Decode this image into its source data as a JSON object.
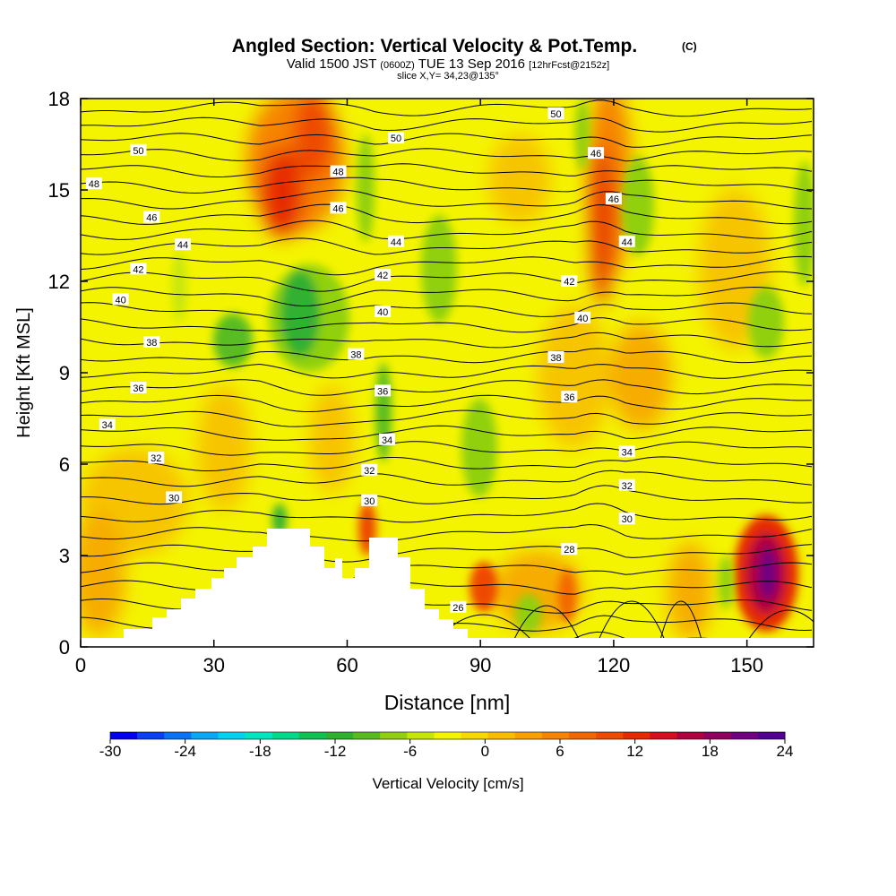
{
  "title": {
    "main": "Angled Section: Vertical Velocity & Pot.Temp.",
    "units": "(C)",
    "valid_a": "Valid 1500 JST",
    "valid_z": "(0600Z)",
    "valid_b": "TUE 13 Sep 2016",
    "fcst": "[12hrFcst@2152z]",
    "slice": "slice X,Y= 34,23@135°"
  },
  "colors": {
    "background_base": "#f4f400",
    "terrain": "#ffffff",
    "contour": "#000000",
    "colorbar": [
      "#0000ee",
      "#0a3ff2",
      "#0a73f5",
      "#08a8f5",
      "#00d2f0",
      "#00e6c0",
      "#00d88a",
      "#10c050",
      "#30b030",
      "#58bc20",
      "#90d010",
      "#c6e60a",
      "#f4f400",
      "#f7d800",
      "#f8bc00",
      "#f7a000",
      "#f68400",
      "#f26800",
      "#ee4a00",
      "#e62a00",
      "#d41020",
      "#b00040",
      "#900060",
      "#700080",
      "#520090"
    ]
  },
  "chart_data": {
    "type": "heatmap",
    "description_variable": "vertical velocity shading with potential temperature contours",
    "xlabel": "Distance [nm]",
    "ylabel": "Height [Kft MSL]",
    "xlim": [
      0,
      165
    ],
    "ylim": [
      0,
      18
    ],
    "xticks": [
      0,
      30,
      60,
      90,
      120,
      150
    ],
    "yticks": [
      0,
      3,
      6,
      9,
      12,
      15,
      18
    ],
    "colorbar": {
      "label": "Vertical Velocity [cm/s]",
      "ticks": [
        -30,
        -24,
        -18,
        -12,
        -6,
        0,
        6,
        12,
        18,
        24
      ],
      "range": [
        -30,
        24
      ]
    },
    "contour_labels": [
      {
        "x": 13,
        "y": 16.3,
        "text": "50"
      },
      {
        "x": 71,
        "y": 16.7,
        "text": "50"
      },
      {
        "x": 107,
        "y": 17.5,
        "text": "50"
      },
      {
        "x": 3,
        "y": 15.2,
        "text": "48"
      },
      {
        "x": 58,
        "y": 15.6,
        "text": "48"
      },
      {
        "x": 116,
        "y": 16.2,
        "text": "46"
      },
      {
        "x": 16,
        "y": 14.1,
        "text": "46"
      },
      {
        "x": 58,
        "y": 14.4,
        "text": "46"
      },
      {
        "x": 120,
        "y": 14.7,
        "text": "46"
      },
      {
        "x": 23,
        "y": 13.2,
        "text": "44"
      },
      {
        "x": 71,
        "y": 13.3,
        "text": "44"
      },
      {
        "x": 123,
        "y": 13.3,
        "text": "44"
      },
      {
        "x": 13,
        "y": 12.4,
        "text": "42"
      },
      {
        "x": 68,
        "y": 12.2,
        "text": "42"
      },
      {
        "x": 110,
        "y": 12.0,
        "text": "42"
      },
      {
        "x": 9,
        "y": 11.4,
        "text": "40"
      },
      {
        "x": 68,
        "y": 11.0,
        "text": "40"
      },
      {
        "x": 113,
        "y": 10.8,
        "text": "40"
      },
      {
        "x": 16,
        "y": 10.0,
        "text": "38"
      },
      {
        "x": 62,
        "y": 9.6,
        "text": "38"
      },
      {
        "x": 107,
        "y": 9.5,
        "text": "38"
      },
      {
        "x": 13,
        "y": 8.5,
        "text": "36"
      },
      {
        "x": 68,
        "y": 8.4,
        "text": "36"
      },
      {
        "x": 110,
        "y": 8.2,
        "text": "36"
      },
      {
        "x": 6,
        "y": 7.3,
        "text": "34"
      },
      {
        "x": 69,
        "y": 6.8,
        "text": "34"
      },
      {
        "x": 123,
        "y": 6.4,
        "text": "34"
      },
      {
        "x": 17,
        "y": 6.2,
        "text": "32"
      },
      {
        "x": 65,
        "y": 5.8,
        "text": "32"
      },
      {
        "x": 123,
        "y": 5.3,
        "text": "32"
      },
      {
        "x": 21,
        "y": 4.9,
        "text": "30"
      },
      {
        "x": 65,
        "y": 4.8,
        "text": "30"
      },
      {
        "x": 123,
        "y": 4.2,
        "text": "30"
      },
      {
        "x": 110,
        "y": 3.2,
        "text": "28"
      },
      {
        "x": 85,
        "y": 1.3,
        "text": "26"
      }
    ]
  }
}
